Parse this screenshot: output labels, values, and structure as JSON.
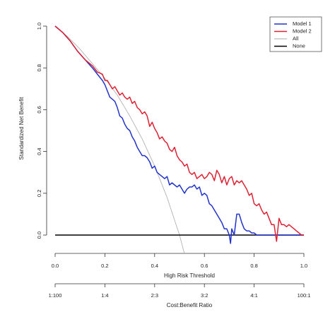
{
  "chart_data": {
    "type": "line",
    "title": "",
    "ylabel": "Standardized Net Benefit",
    "xlabel": "High Risk Threshold",
    "x2label": "Cost:Benefit Ratio",
    "xlim": [
      0,
      1
    ],
    "ylim": [
      0,
      1
    ],
    "yticks": [
      "0.0",
      "0.2",
      "0.4",
      "0.6",
      "0.8",
      "1.0"
    ],
    "xticks": [
      "0.0",
      "0.2",
      "0.4",
      "0.6",
      "0.8",
      "1.0"
    ],
    "x2ticks": [
      "1:100",
      "1:4",
      "2:3",
      "3:2",
      "4:1",
      "100:1"
    ],
    "grid": false,
    "legend_position": "top-right",
    "series": [
      {
        "name": "Model 1",
        "color": "#2233cc",
        "points": [
          [
            0.0,
            1.0
          ],
          [
            0.03,
            0.97
          ],
          [
            0.06,
            0.93
          ],
          [
            0.09,
            0.88
          ],
          [
            0.12,
            0.84
          ],
          [
            0.15,
            0.8
          ],
          [
            0.17,
            0.77
          ],
          [
            0.19,
            0.74
          ],
          [
            0.2,
            0.72
          ],
          [
            0.21,
            0.69
          ],
          [
            0.22,
            0.66
          ],
          [
            0.24,
            0.64
          ],
          [
            0.25,
            0.61
          ],
          [
            0.26,
            0.57
          ],
          [
            0.27,
            0.56
          ],
          [
            0.28,
            0.53
          ],
          [
            0.29,
            0.51
          ],
          [
            0.3,
            0.5
          ],
          [
            0.31,
            0.47
          ],
          [
            0.32,
            0.45
          ],
          [
            0.33,
            0.42
          ],
          [
            0.34,
            0.4
          ],
          [
            0.35,
            0.38
          ],
          [
            0.36,
            0.38
          ],
          [
            0.37,
            0.37
          ],
          [
            0.38,
            0.35
          ],
          [
            0.39,
            0.32
          ],
          [
            0.4,
            0.33
          ],
          [
            0.41,
            0.3
          ],
          [
            0.42,
            0.29
          ],
          [
            0.43,
            0.28
          ],
          [
            0.44,
            0.27
          ],
          [
            0.45,
            0.28
          ],
          [
            0.46,
            0.24
          ],
          [
            0.47,
            0.25
          ],
          [
            0.48,
            0.24
          ],
          [
            0.49,
            0.23
          ],
          [
            0.5,
            0.24
          ],
          [
            0.51,
            0.22
          ],
          [
            0.52,
            0.2
          ],
          [
            0.53,
            0.22
          ],
          [
            0.54,
            0.23
          ],
          [
            0.55,
            0.23
          ],
          [
            0.56,
            0.24
          ],
          [
            0.57,
            0.22
          ],
          [
            0.58,
            0.23
          ],
          [
            0.59,
            0.19
          ],
          [
            0.6,
            0.2
          ],
          [
            0.61,
            0.19
          ],
          [
            0.62,
            0.15
          ],
          [
            0.63,
            0.14
          ],
          [
            0.64,
            0.12
          ],
          [
            0.65,
            0.1
          ],
          [
            0.66,
            0.08
          ],
          [
            0.67,
            0.06
          ],
          [
            0.68,
            0.03
          ],
          [
            0.69,
            0.03
          ],
          [
            0.7,
            0.0
          ],
          [
            0.705,
            -0.04
          ],
          [
            0.71,
            0.03
          ],
          [
            0.72,
            0.0
          ],
          [
            0.73,
            0.1
          ],
          [
            0.74,
            0.1
          ],
          [
            0.75,
            0.06
          ],
          [
            0.76,
            0.03
          ],
          [
            0.77,
            0.02
          ],
          [
            0.78,
            0.02
          ],
          [
            0.79,
            0.01
          ],
          [
            0.8,
            0.01
          ],
          [
            0.81,
            0.0
          ],
          [
            1.0,
            0.0
          ]
        ]
      },
      {
        "name": "Model 2",
        "color": "#dd2233",
        "points": [
          [
            0.0,
            1.0
          ],
          [
            0.03,
            0.97
          ],
          [
            0.06,
            0.93
          ],
          [
            0.09,
            0.88
          ],
          [
            0.12,
            0.84
          ],
          [
            0.15,
            0.81
          ],
          [
            0.17,
            0.78
          ],
          [
            0.19,
            0.77
          ],
          [
            0.2,
            0.74
          ],
          [
            0.21,
            0.74
          ],
          [
            0.22,
            0.72
          ],
          [
            0.23,
            0.7
          ],
          [
            0.24,
            0.71
          ],
          [
            0.25,
            0.69
          ],
          [
            0.26,
            0.67
          ],
          [
            0.27,
            0.68
          ],
          [
            0.28,
            0.66
          ],
          [
            0.29,
            0.65
          ],
          [
            0.3,
            0.66
          ],
          [
            0.31,
            0.63
          ],
          [
            0.32,
            0.64
          ],
          [
            0.33,
            0.61
          ],
          [
            0.34,
            0.6
          ],
          [
            0.35,
            0.58
          ],
          [
            0.36,
            0.59
          ],
          [
            0.37,
            0.57
          ],
          [
            0.38,
            0.52
          ],
          [
            0.39,
            0.54
          ],
          [
            0.4,
            0.51
          ],
          [
            0.41,
            0.49
          ],
          [
            0.42,
            0.46
          ],
          [
            0.43,
            0.47
          ],
          [
            0.44,
            0.45
          ],
          [
            0.45,
            0.44
          ],
          [
            0.46,
            0.41
          ],
          [
            0.47,
            0.4
          ],
          [
            0.48,
            0.42
          ],
          [
            0.49,
            0.38
          ],
          [
            0.5,
            0.36
          ],
          [
            0.51,
            0.35
          ],
          [
            0.52,
            0.33
          ],
          [
            0.53,
            0.34
          ],
          [
            0.54,
            0.3
          ],
          [
            0.55,
            0.29
          ],
          [
            0.56,
            0.3
          ],
          [
            0.57,
            0.27
          ],
          [
            0.58,
            0.28
          ],
          [
            0.59,
            0.29
          ],
          [
            0.6,
            0.27
          ],
          [
            0.61,
            0.28
          ],
          [
            0.62,
            0.3
          ],
          [
            0.63,
            0.29
          ],
          [
            0.64,
            0.26
          ],
          [
            0.65,
            0.31
          ],
          [
            0.66,
            0.29
          ],
          [
            0.67,
            0.25
          ],
          [
            0.68,
            0.28
          ],
          [
            0.69,
            0.24
          ],
          [
            0.7,
            0.27
          ],
          [
            0.71,
            0.28
          ],
          [
            0.72,
            0.24
          ],
          [
            0.73,
            0.26
          ],
          [
            0.74,
            0.25
          ],
          [
            0.75,
            0.26
          ],
          [
            0.76,
            0.24
          ],
          [
            0.77,
            0.22
          ],
          [
            0.78,
            0.19
          ],
          [
            0.79,
            0.2
          ],
          [
            0.8,
            0.15
          ],
          [
            0.81,
            0.14
          ],
          [
            0.82,
            0.15
          ],
          [
            0.83,
            0.12
          ],
          [
            0.84,
            0.1
          ],
          [
            0.85,
            0.11
          ],
          [
            0.86,
            0.08
          ],
          [
            0.87,
            0.05
          ],
          [
            0.88,
            0.05
          ],
          [
            0.89,
            -0.03
          ],
          [
            0.9,
            0.08
          ],
          [
            0.91,
            0.05
          ],
          [
            0.92,
            0.05
          ],
          [
            0.93,
            0.04
          ],
          [
            0.94,
            0.05
          ],
          [
            0.95,
            0.04
          ],
          [
            0.96,
            0.03
          ],
          [
            0.97,
            0.02
          ],
          [
            0.98,
            0.01
          ],
          [
            0.99,
            0.0
          ],
          [
            1.0,
            0.0
          ]
        ]
      },
      {
        "name": "All",
        "color": "#aaaaaa",
        "points": [
          [
            0.0,
            1.0
          ],
          [
            0.05,
            0.95
          ],
          [
            0.1,
            0.89
          ],
          [
            0.15,
            0.82
          ],
          [
            0.2,
            0.75
          ],
          [
            0.25,
            0.67
          ],
          [
            0.3,
            0.57
          ],
          [
            0.35,
            0.46
          ],
          [
            0.4,
            0.33
          ],
          [
            0.45,
            0.18
          ],
          [
            0.5,
            0.0
          ],
          [
            0.52,
            -0.09
          ]
        ]
      },
      {
        "name": "None",
        "color": "#000000",
        "points": [
          [
            0.0,
            0.0
          ],
          [
            1.0,
            0.0
          ]
        ]
      }
    ]
  }
}
